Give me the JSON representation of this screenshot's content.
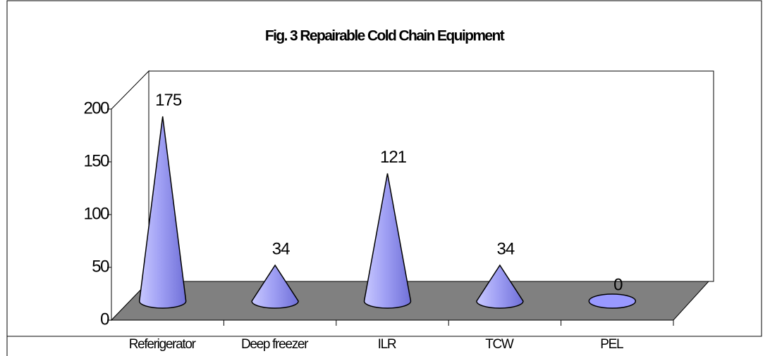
{
  "chart_data": {
    "type": "cone",
    "title": "Fig. 3 Repairable Cold Chain Equipment",
    "categories": [
      "Referigerator",
      "Deep freezer",
      "ILR",
      "TCW",
      "PEL"
    ],
    "values": [
      175,
      34,
      121,
      34,
      0
    ],
    "color": "#9999ff",
    "ylim": [
      0,
      200
    ],
    "yticks": [
      0,
      50,
      100,
      150,
      200
    ]
  }
}
